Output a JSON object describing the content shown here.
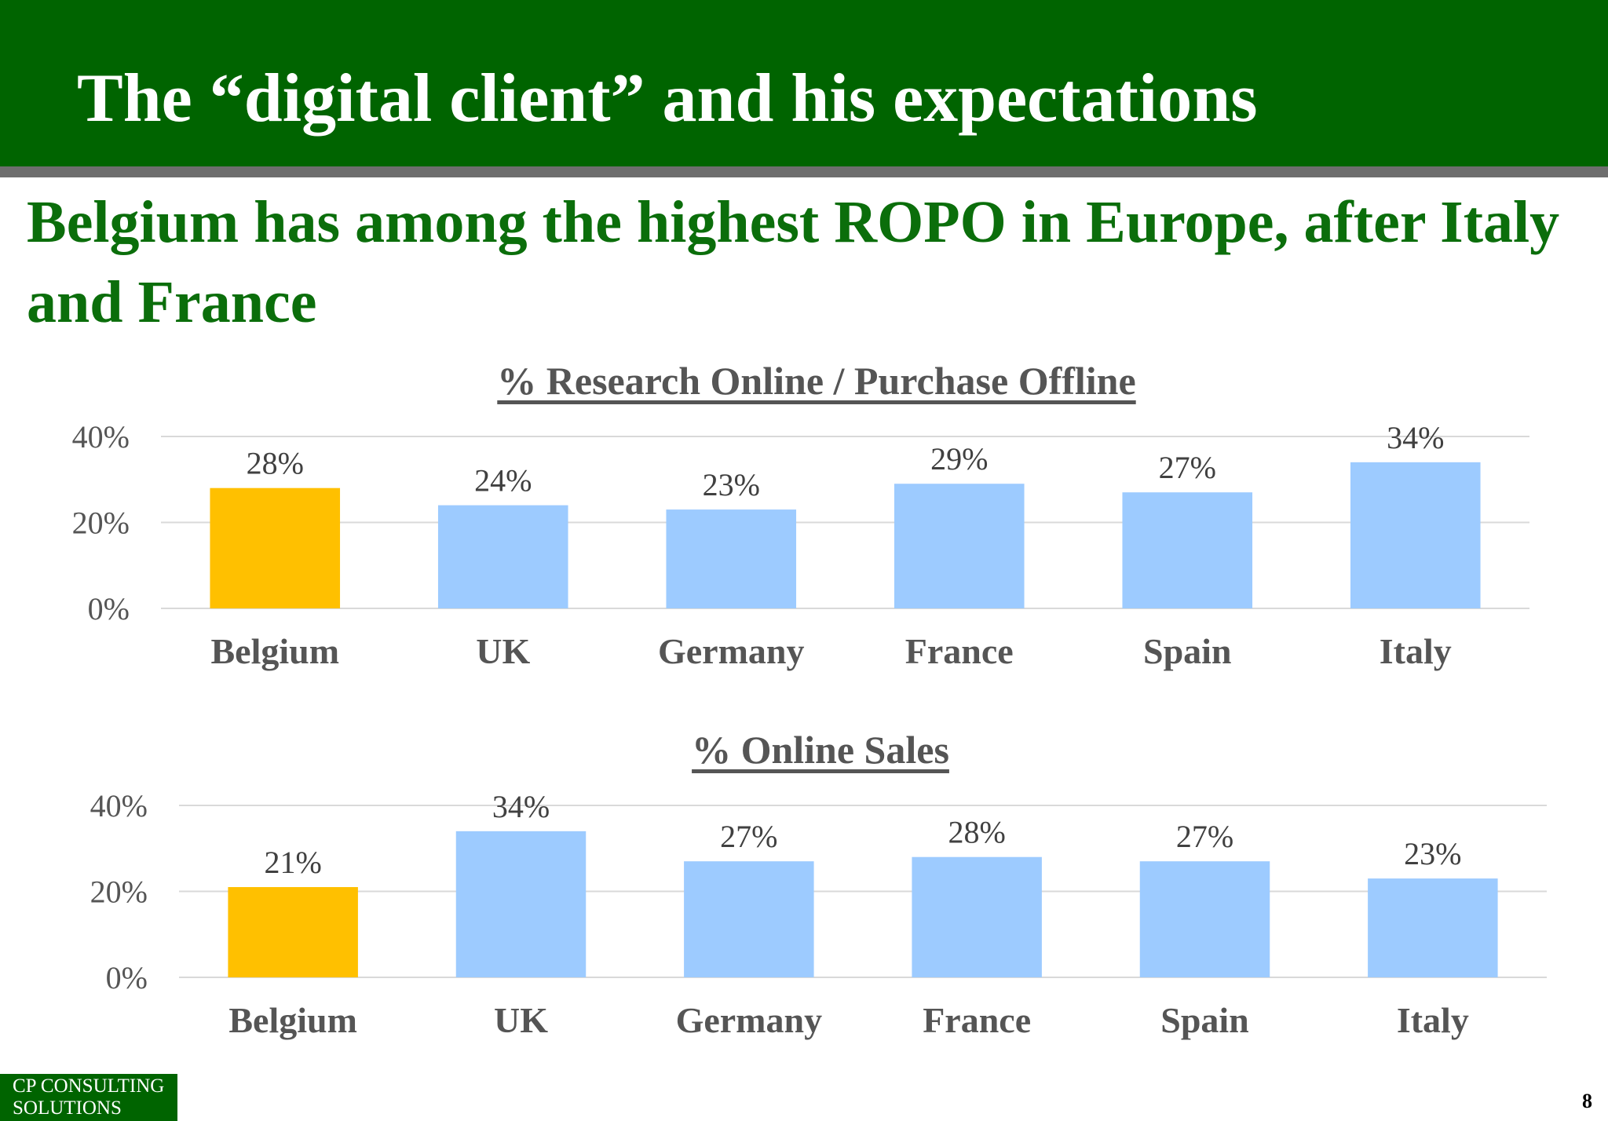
{
  "slide": {
    "title": "The “digital client” and his expectations",
    "headline": "Belgium has among the highest ROPO in Europe, after Italy and France",
    "footer_line1": "CP CONSULTING",
    "footer_line2": "SOLUTIONS",
    "page_number": "8"
  },
  "colors": {
    "header_band": "#006400",
    "header_rule": "#6e6e6e",
    "headline": "#0b6e0b",
    "highlight_bar": "#FFC000",
    "bar": "#9DCBFF",
    "axis_text": "#555555"
  },
  "chart_data": [
    {
      "type": "bar",
      "title": "% Research Online / Purchase Offline",
      "categories": [
        "Belgium",
        "UK",
        "Germany",
        "France",
        "Spain",
        "Italy"
      ],
      "values": [
        28,
        24,
        23,
        29,
        27,
        34
      ],
      "data_labels": [
        "28%",
        "24%",
        "23%",
        "29%",
        "27%",
        "34%"
      ],
      "highlight_category": "Belgium",
      "ylim": [
        0,
        40
      ],
      "yticks": [
        0,
        20,
        40
      ],
      "ytick_labels": [
        "0%",
        "20%",
        "40%"
      ],
      "grid": true,
      "legend": "none"
    },
    {
      "type": "bar",
      "title": "% Online Sales",
      "categories": [
        "Belgium",
        "UK",
        "Germany",
        "France",
        "Spain",
        "Italy"
      ],
      "values": [
        21,
        34,
        27,
        28,
        27,
        23
      ],
      "data_labels": [
        "21%",
        "34%",
        "27%",
        "28%",
        "27%",
        "23%"
      ],
      "highlight_category": "Belgium",
      "ylim": [
        0,
        40
      ],
      "yticks": [
        0,
        20,
        40
      ],
      "ytick_labels": [
        "0%",
        "20%",
        "40%"
      ],
      "grid": true,
      "legend": "none"
    }
  ]
}
